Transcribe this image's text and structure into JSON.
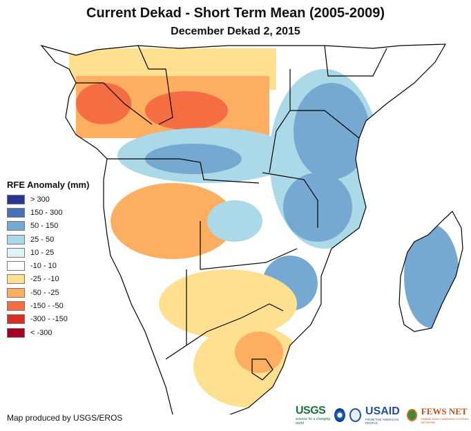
{
  "header": {
    "title": "Current Dekad - Short Term Mean (2005-2009)",
    "subtitle": "December Dekad 2, 2015"
  },
  "legend": {
    "title": "RFE Anomaly (mm)",
    "items": [
      {
        "label": "> 300",
        "color": "#2b3592"
      },
      {
        "label": "150 - 300",
        "color": "#4573b8"
      },
      {
        "label": "50 - 150",
        "color": "#75a9d2"
      },
      {
        "label": "25 - 50",
        "color": "#abd9e8"
      },
      {
        "label": "10 - 25",
        "color": "#e0f3f8"
      },
      {
        "label": "-10 - 10",
        "color": "#ffffff"
      },
      {
        "label": "-25 - -10",
        "color": "#fee090"
      },
      {
        "label": "-50 - -25",
        "color": "#fdae61"
      },
      {
        "label": "-150 - -50",
        "color": "#f46d43"
      },
      {
        "label": "-300 - -150",
        "color": "#d73027"
      },
      {
        "label": "< -300",
        "color": "#a50026"
      }
    ]
  },
  "map": {
    "region": "Southern and Central Africa",
    "ocean_color": "#ffffff",
    "border_color": "#000000"
  },
  "footer": {
    "credit": "Map produced by USGS/EROS",
    "logos": {
      "usgs": "USGS",
      "usgs_tag": "science for a changing world",
      "usaid": "USAID",
      "usaid_tag": "FROM THE AMERICAN PEOPLE",
      "fews": "FEWS NET",
      "fews_tag": "FAMINE EARLY WARNING SYSTEMS NETWORK"
    }
  }
}
